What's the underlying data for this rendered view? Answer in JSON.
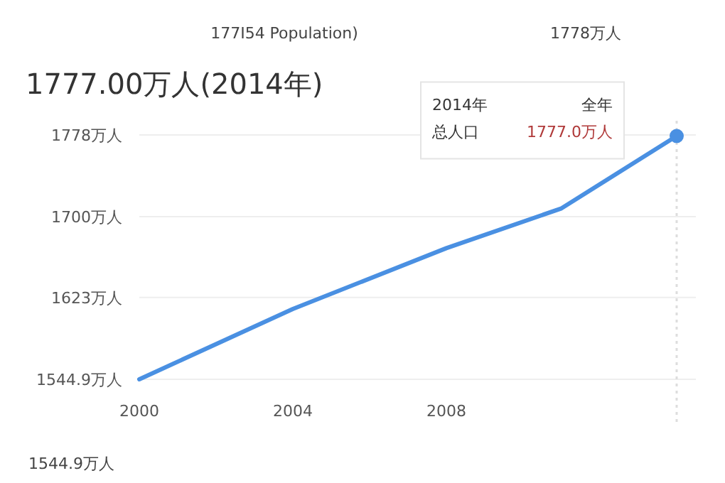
{
  "chart_data": {
    "type": "line",
    "title": "1777.00万人(2014年)",
    "x": [
      2000,
      2004,
      2008,
      2011,
      2014
    ],
    "series": [
      {
        "color": "#4a90e2",
        "values": [
          1544.9,
          1612,
          1670,
          1708,
          1777.0
        ]
      },
      {
        "color": "#4a90e2",
        "x": [
          2014
        ],
        "values": [
          1777.0
        ],
        "marker": "circle"
      }
    ],
    "xlim": [
      2000,
      2014.5
    ],
    "ylim": [
      1544.9,
      1778
    ],
    "xticks": [
      2000,
      2004,
      2008
    ],
    "yticks": [
      {
        "value": 1544.9,
        "label": "1544.9万人"
      },
      {
        "value": 1623,
        "label": "1623万人"
      },
      {
        "value": 1700,
        "label": "1700万人"
      },
      {
        "value": 1778,
        "label": "1778万人"
      }
    ],
    "grid": "y",
    "marker": "none",
    "line_style": "solid",
    "ref_lines": [
      {
        "axis": "x",
        "value": 2014,
        "color": "#dddddd",
        "line_style": "dotted"
      }
    ],
    "annotations": [
      "177I54 Population)",
      "1778万人",
      "1544.9万人",
      "2014年",
      "全年",
      "总人口",
      "1777.0万人"
    ]
  }
}
